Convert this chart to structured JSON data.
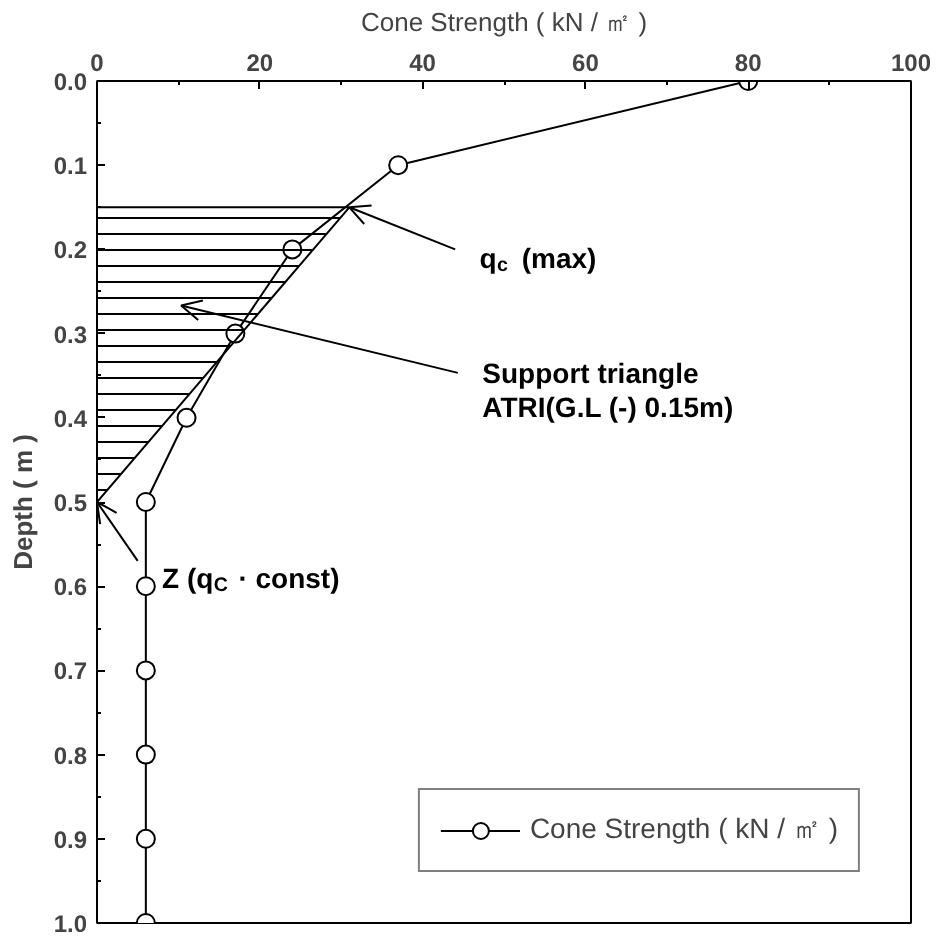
{
  "chart_data": {
    "type": "line",
    "xlabel": "Cone Strength ( kN / ㎡ )",
    "ylabel": "Depth ( m )",
    "marker": "circle",
    "legend": "bottom right",
    "grid": false,
    "xlim": [
      0,
      100
    ],
    "xticks": [
      0,
      20,
      40,
      60,
      80,
      100
    ],
    "ylim": [
      1.0,
      0.0
    ],
    "yticks": [
      {
        "value": 0.0,
        "label": "0.0"
      },
      0.1,
      0.2,
      0.3,
      0.4,
      0.5,
      0.6,
      0.7,
      0.8,
      0.9,
      {
        "value": 1.0,
        "label": "1.0"
      }
    ],
    "series": [
      {
        "name": "Cone Strength ( kN / ㎡ )",
        "color": "#000000",
        "x": [
          80,
          37,
          24,
          17,
          11,
          6,
          6,
          6,
          6,
          6,
          6
        ],
        "values": [
          0.0,
          0.1,
          0.2,
          0.3,
          0.4,
          0.5,
          0.6,
          0.7,
          0.8,
          0.9,
          1.0
        ]
      },
      {
        "color": "#000000",
        "type": "area",
        "marker": "none",
        "x": [
          0,
          31,
          0
        ],
        "values": [
          0.15,
          0.15,
          0.5
        ]
      }
    ],
    "annotations": [
      {
        "text": "q$_{c}$ (max)",
        "x": 31,
        "y": 0.15
      },
      "Support triangle\nATRI(G.L (-) 0.15m)",
      {
        "text": "Z (q$_{C}$ · const)",
        "x": 0,
        "y": 0.5
      }
    ]
  }
}
